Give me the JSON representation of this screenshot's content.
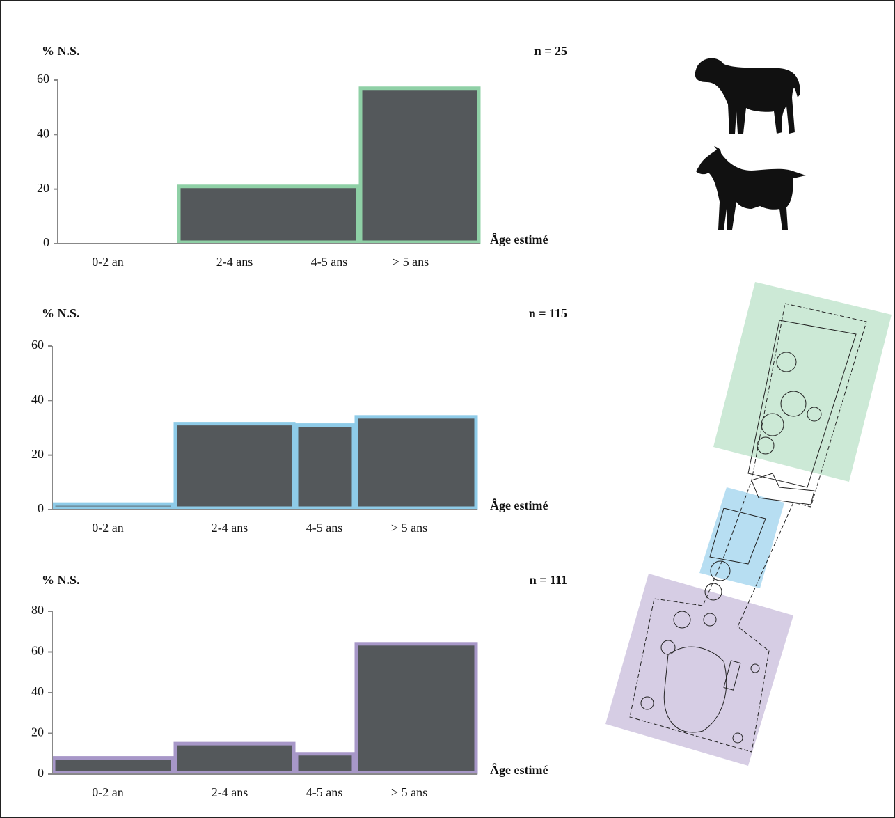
{
  "chart_data": [
    {
      "type": "bar",
      "y_label": "% N.S.",
      "annotation": "n = 25",
      "x_label": "Âge estimé",
      "categories": [
        "0-2 an",
        "2-4 ans",
        "4-5 ans",
        "> 5 ans"
      ],
      "values": [
        0,
        21,
        null,
        57
      ],
      "color": "#8fd0a6",
      "ylim": [
        0,
        60
      ],
      "yticks": [
        0,
        20,
        40,
        60
      ]
    },
    {
      "type": "bar",
      "y_label": "% N.S.",
      "annotation": "n = 115",
      "x_label": "Âge estimé",
      "categories": [
        "0-2 an",
        "2-4 ans",
        "4-5 ans",
        "> 5 ans"
      ],
      "values": [
        2,
        31.5,
        31,
        34
      ],
      "color": "#8ecbe8",
      "ylim": [
        0,
        60
      ],
      "yticks": [
        0,
        20,
        40,
        60
      ]
    },
    {
      "type": "bar",
      "y_label": "% N.S.",
      "annotation": "n = 111",
      "x_label": "Âge estimé",
      "categories": [
        "0-2 an",
        "2-4 ans",
        "4-5 ans",
        "> 5 ans"
      ],
      "values": [
        8,
        15,
        10,
        64
      ],
      "color": "#a797c8",
      "ylim": [
        0,
        80
      ],
      "yticks": [
        0,
        20,
        40,
        60,
        80
      ]
    }
  ]
}
